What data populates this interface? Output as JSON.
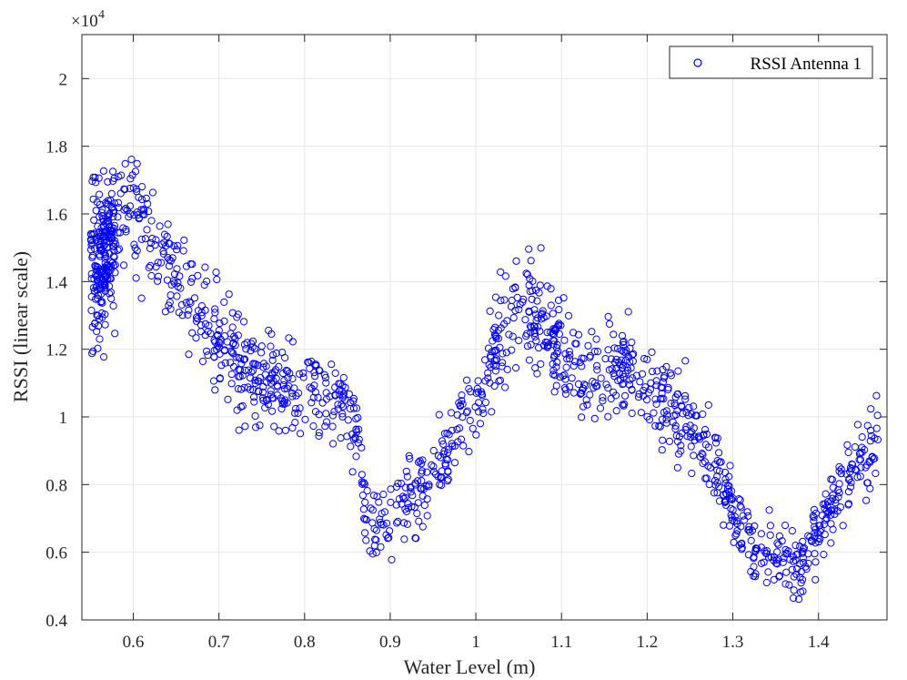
{
  "colors": {
    "marker": "#0000ff",
    "grid": "#e6e6e6",
    "axis": "#262626",
    "background": "#ffffff"
  },
  "chart_data": {
    "type": "scatter",
    "title": "",
    "xlabel": "Water Level (m)",
    "ylabel": "RSSI (linear scale)",
    "xlim": [
      0.54,
      1.48
    ],
    "ylim": [
      0.4,
      2.13
    ],
    "y_exponent_base": "×10",
    "y_exponent_power": "4",
    "x_ticks": [
      0.6,
      0.7,
      0.8,
      0.9,
      1,
      1.1,
      1.2,
      1.3,
      1.4
    ],
    "x_tick_labels": [
      "0.6",
      "0.7",
      "0.8",
      "0.9",
      "1",
      "1.1",
      "1.2",
      "1.3",
      "1.4"
    ],
    "y_ticks": [
      0.4,
      0.6,
      0.8,
      1,
      1.2,
      1.4,
      1.6,
      1.8,
      2
    ],
    "y_tick_labels": [
      "0.4",
      "0.6",
      "0.8",
      "1",
      "1.2",
      "1.4",
      "1.6",
      "1.8",
      "2"
    ],
    "grid": true,
    "legend_position": "top-right",
    "marker": "open-circle",
    "series": [
      {
        "name": "RSSI Antenna 1",
        "trend_x": [
          0.55,
          0.56,
          0.58,
          0.6,
          0.62,
          0.65,
          0.68,
          0.72,
          0.76,
          0.8,
          0.84,
          0.86,
          0.87,
          0.88,
          0.9,
          0.93,
          0.96,
          0.99,
          1.02,
          1.05,
          1.07,
          1.1,
          1.13,
          1.17,
          1.2,
          1.23,
          1.26,
          1.29,
          1.31,
          1.33,
          1.36,
          1.38,
          1.4,
          1.43,
          1.46,
          1.47
        ],
        "trend_y": [
          1.48,
          1.45,
          1.55,
          1.62,
          1.52,
          1.4,
          1.3,
          1.18,
          1.1,
          1.07,
          1.05,
          1.0,
          0.72,
          0.68,
          0.7,
          0.78,
          0.88,
          1.0,
          1.18,
          1.32,
          1.3,
          1.18,
          1.12,
          1.15,
          1.08,
          1.02,
          0.95,
          0.8,
          0.66,
          0.6,
          0.58,
          0.56,
          0.68,
          0.8,
          0.9,
          0.93
        ],
        "spread": [
          0.22,
          0.2,
          0.16,
          0.16,
          0.14,
          0.13,
          0.12,
          0.12,
          0.12,
          0.12,
          0.11,
          0.1,
          0.1,
          0.08,
          0.08,
          0.1,
          0.1,
          0.11,
          0.12,
          0.14,
          0.14,
          0.12,
          0.12,
          0.12,
          0.11,
          0.1,
          0.1,
          0.1,
          0.09,
          0.08,
          0.08,
          0.08,
          0.09,
          0.1,
          0.11,
          0.11
        ],
        "count": 1500,
        "seed": 12345
      }
    ]
  }
}
